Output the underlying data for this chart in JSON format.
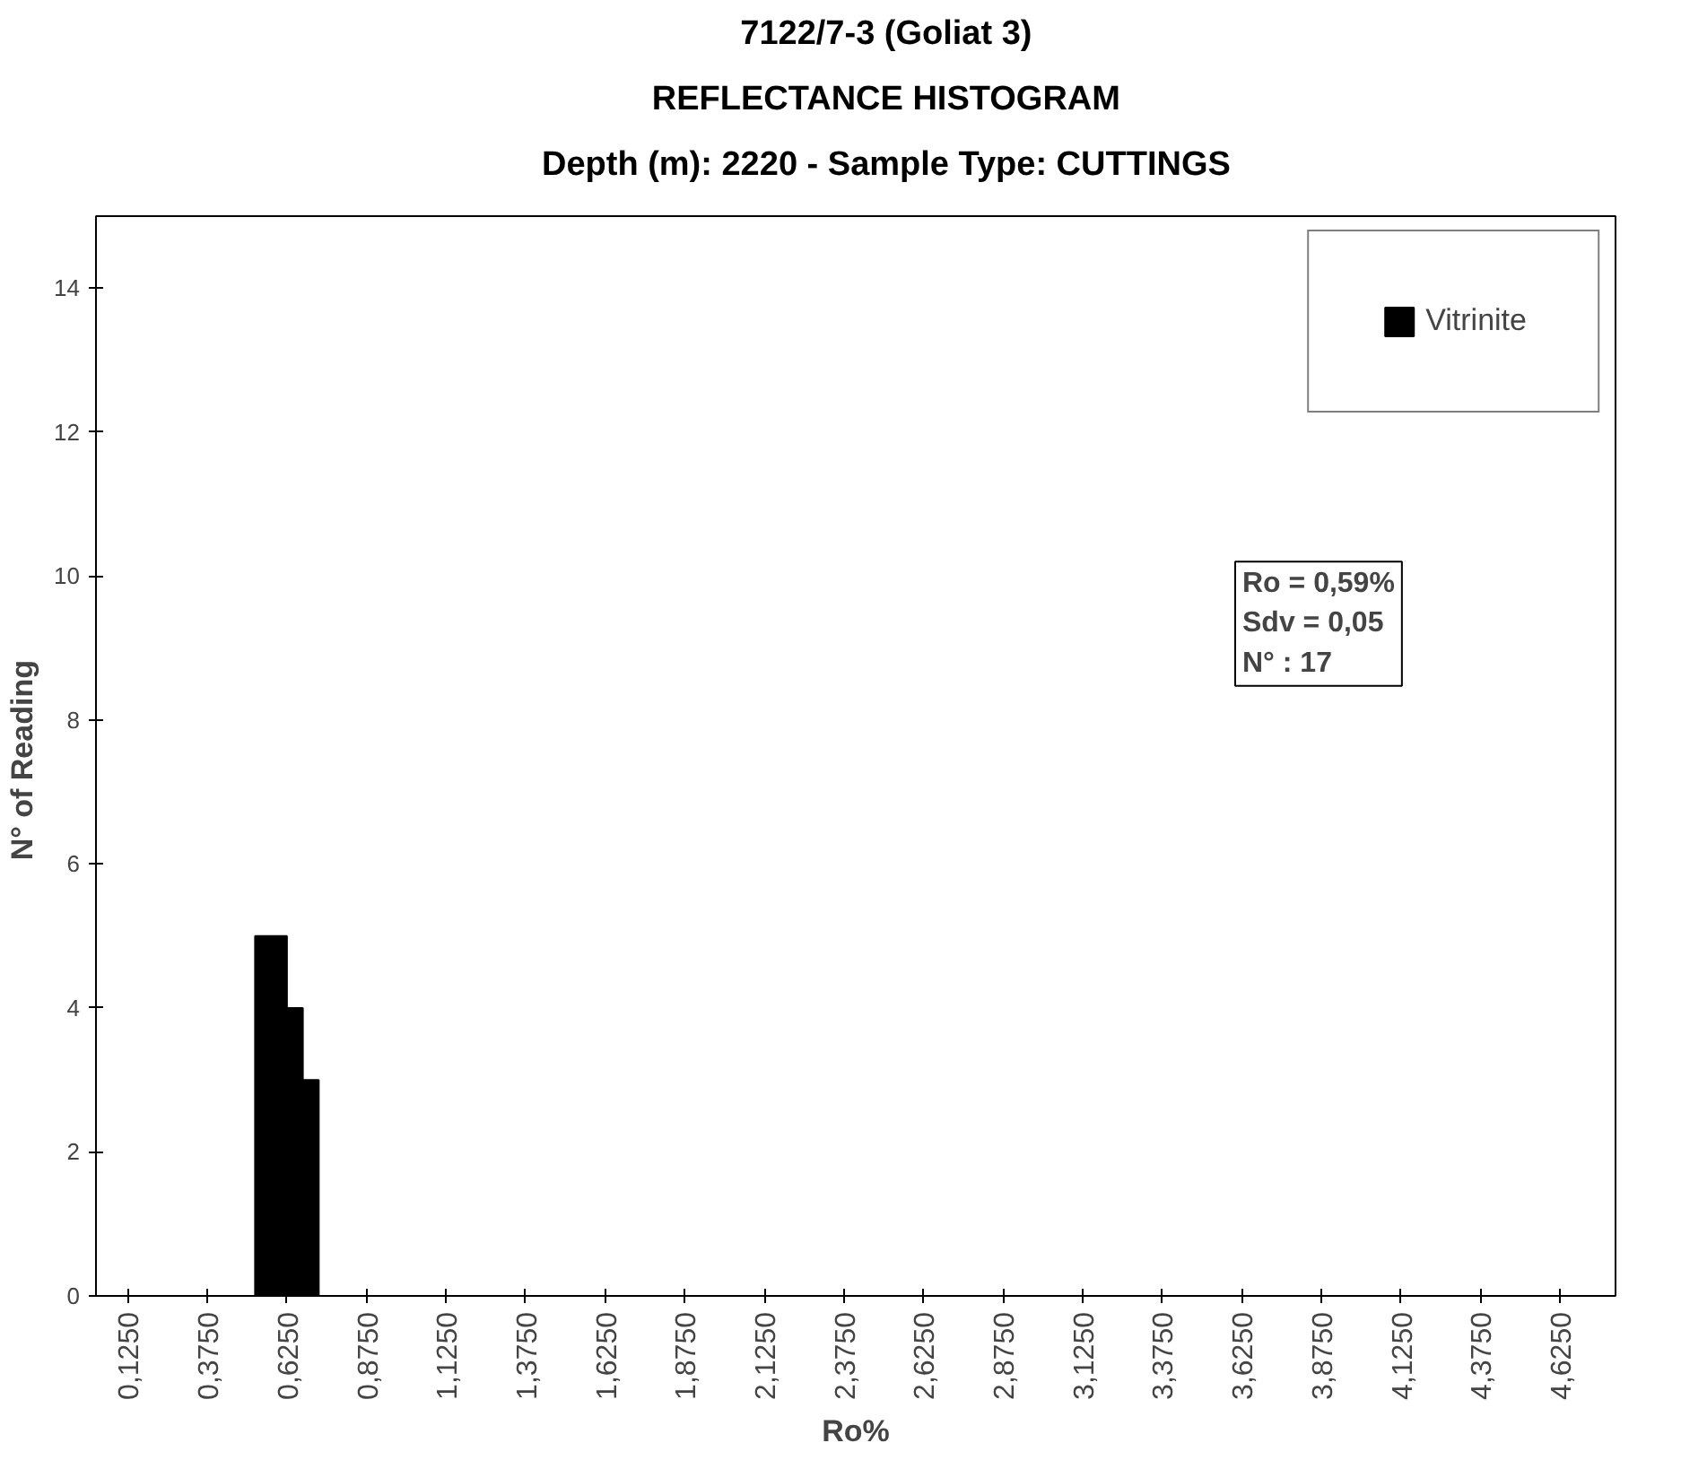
{
  "chart_data": {
    "type": "histogram",
    "title": "7122/7-3 (Goliat 3)",
    "subtitle": "REFLECTANCE HISTOGRAM\nDepth (m): 2220 - Sample Type: CUTTINGS",
    "xlabel": "Ro%",
    "ylabel": "N°  of Reading",
    "bins": [
      0.525,
      0.575,
      0.625,
      0.675,
      0.725
    ],
    "series": [
      {
        "name": "Vitrinite",
        "color": "#000000",
        "values": [
          5,
          5,
          4,
          3
        ]
      }
    ],
    "xlim": [
      0.025,
      4.8
    ],
    "ylim": [
      0,
      15
    ],
    "xticks": [
      {
        "value": 0.125,
        "label": "0,1250"
      },
      {
        "value": 0.375,
        "label": "0,3750"
      },
      {
        "value": 0.625,
        "label": "0,6250"
      },
      {
        "value": 0.875,
        "label": "0,8750"
      },
      {
        "value": 1.125,
        "label": "1,1250"
      },
      {
        "value": 1.375,
        "label": "1,3750"
      },
      {
        "value": 1.625,
        "label": "1,6250"
      },
      {
        "value": 1.875,
        "label": "1,8750"
      },
      {
        "value": 2.125,
        "label": "2,1250"
      },
      {
        "value": 2.375,
        "label": "2,3750"
      },
      {
        "value": 2.625,
        "label": "2,6250"
      },
      {
        "value": 2.875,
        "label": "2,8750"
      },
      {
        "value": 3.125,
        "label": "3,1250"
      },
      {
        "value": 3.375,
        "label": "3,3750"
      },
      {
        "value": 3.625,
        "label": "3,6250"
      },
      {
        "value": 3.875,
        "label": "3,8750"
      },
      {
        "value": 4.125,
        "label": "4,1250"
      },
      {
        "value": 4.375,
        "label": "4,3750"
      },
      {
        "value": 4.625,
        "label": "4,6250"
      }
    ],
    "yticks": [
      0,
      2,
      4,
      6,
      8,
      10,
      12,
      14
    ],
    "annotations": [
      "Ro = 0,59%\nSdv = 0,05\nN° : 17"
    ],
    "legend": "top right",
    "grid": false
  }
}
